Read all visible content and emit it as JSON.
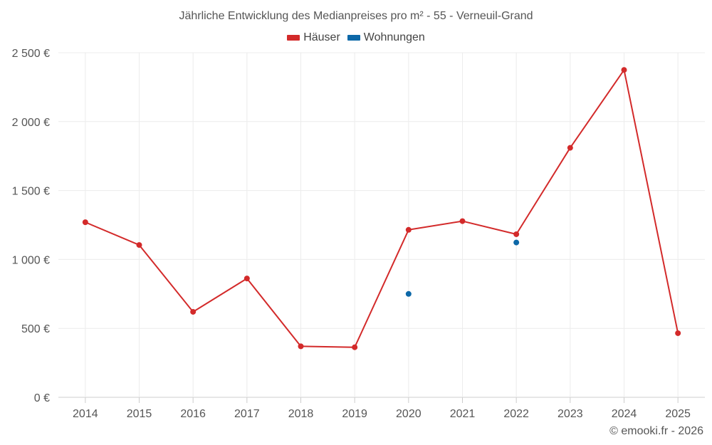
{
  "chart_data": {
    "type": "line",
    "title": "Jährliche Entwicklung des Medianpreises pro m² - 55 - Verneuil-Grand",
    "categories": [
      "2014",
      "2015",
      "2016",
      "2017",
      "2018",
      "2019",
      "2020",
      "2021",
      "2022",
      "2023",
      "2024",
      "2025"
    ],
    "series": [
      {
        "name": "Häuser",
        "color": "#d32a2a",
        "values": [
          1270,
          1105,
          620,
          862,
          370,
          363,
          1215,
          1278,
          1183,
          1810,
          2375,
          465
        ]
      },
      {
        "name": "Wohnungen",
        "color": "#0d68a8",
        "values": [
          null,
          null,
          null,
          null,
          null,
          null,
          750,
          null,
          1123,
          null,
          null,
          null
        ]
      }
    ],
    "y_ticks": [
      0,
      500,
      1000,
      1500,
      2000,
      2500
    ],
    "y_tick_labels": [
      "0 €",
      "500 €",
      "1 000 €",
      "1 500 €",
      "2 000 €",
      "2 500 €"
    ],
    "ylim": [
      0,
      2500
    ],
    "grid": true,
    "legend_position": "top-center"
  },
  "credit": "© emooki.fr - 2026"
}
